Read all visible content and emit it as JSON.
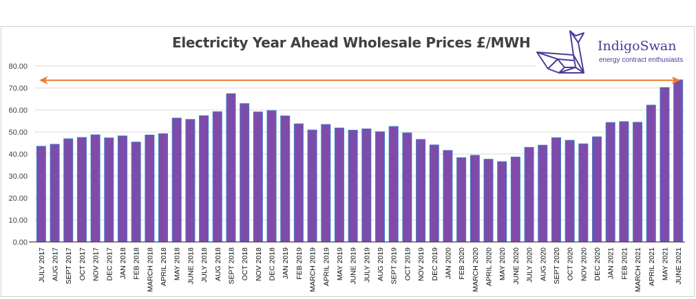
{
  "chart_data": {
    "type": "bar",
    "title": "Electricity Year Ahead Wholesale Prices £/MWH",
    "xlabel": "",
    "ylabel": "",
    "ylim": [
      0,
      80
    ],
    "yticks": [
      "0.00",
      "10.00",
      "20.00",
      "30.00",
      "40.00",
      "50.00",
      "60.00",
      "70.00",
      "80.00"
    ],
    "ytick_values": [
      0,
      10,
      20,
      30,
      40,
      50,
      60,
      70,
      80
    ],
    "grid": true,
    "legend": "none",
    "bar_color": "#7f4bab",
    "bar_edge_color": "#3d7dc8",
    "categories": [
      "JULY 2017",
      "AUG 2017",
      "SEPT 2017",
      "OCT 2017",
      "NOV 2017",
      "DEC 2017",
      "JAN 2018",
      "FEB 2018",
      "MARCH 2018",
      "APRIL 2018",
      "MAY 2018",
      "JUNE 2018",
      "JULY 2018",
      "AUG 2018",
      "SEPT 2018",
      "OCT 2018",
      "NOV 2018",
      "DEC 2018",
      "JAN 2019",
      "FEB 2019",
      "MARCH 2019",
      "APRIL 2019",
      "MAY 2019",
      "JUNE 2019",
      "JULY 2019",
      "AUG 2019",
      "SEPT 2019",
      "OCT 2019",
      "NOV 2019",
      "DEC 2019",
      "JAN 2020",
      "FEB 2020",
      "MARCH 2020",
      "APRIL 2020",
      "MAY 2020",
      "JUNE 2020",
      "JULY 2020",
      "AUG 2020",
      "SEPT 2020",
      "OCT 2020",
      "NOV 2020",
      "DEC 2020",
      "JAN 2021",
      "FEB 2021",
      "MARCH 2021",
      "APRIL 2021",
      "MAY 2021",
      "JUNE 2021"
    ],
    "values": [
      43.5,
      44.4,
      46.9,
      47.5,
      48.7,
      47.3,
      48.2,
      45.4,
      48.6,
      49.2,
      56.3,
      55.7,
      57.4,
      59.2,
      67.4,
      62.9,
      59.1,
      59.7,
      57.3,
      53.7,
      50.9,
      53.4,
      51.8,
      50.8,
      51.4,
      50.1,
      52.5,
      49.6,
      46.6,
      44.1,
      41.6,
      38.3,
      39.4,
      37.6,
      36.5,
      38.6,
      43.0,
      44.0,
      47.4,
      46.2,
      44.6,
      47.8,
      54.3,
      54.7,
      54.4,
      62.2,
      70.2,
      73.7
    ],
    "annotations": [
      {
        "type": "double-arrow",
        "y": 73.5,
        "from": "JULY 2017",
        "to": "JUNE 2021",
        "color": "#ed7d31"
      }
    ]
  },
  "logo": {
    "name": "IndigoSwan",
    "tagline": "energy contract enthusiasts",
    "color": "#4b3a9b"
  }
}
